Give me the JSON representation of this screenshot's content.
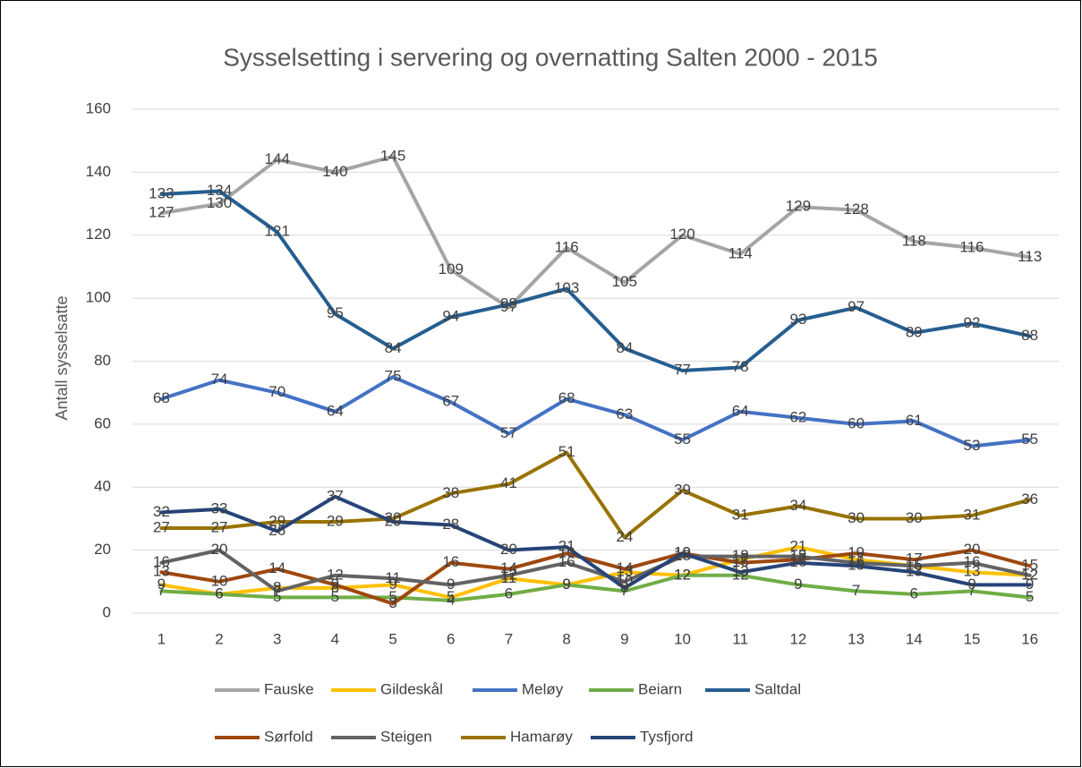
{
  "chart_data": {
    "type": "line",
    "title": "Sysselsetting i servering og overnatting Salten 2000 - 2015",
    "y_label": "Antall sysselsatte",
    "categories": [
      "1",
      "2",
      "3",
      "4",
      "5",
      "6",
      "7",
      "8",
      "9",
      "10",
      "11",
      "12",
      "13",
      "14",
      "15",
      "16"
    ],
    "series": [
      {
        "name": "Fauske",
        "color": "#a5a5a5",
        "values": [
          127,
          130,
          144,
          140,
          145,
          109,
          97,
          116,
          105,
          120,
          114,
          129,
          128,
          118,
          116,
          113
        ]
      },
      {
        "name": "Gildeskål",
        "color": "#ffc000",
        "values": [
          9,
          6,
          8,
          8,
          9,
          5,
          11,
          9,
          13,
          12,
          17,
          21,
          17,
          15,
          13,
          12
        ]
      },
      {
        "name": "Meløy",
        "color": "#4472c4",
        "values": [
          68,
          74,
          70,
          64,
          75,
          67,
          57,
          68,
          63,
          55,
          64,
          62,
          60,
          61,
          53,
          55
        ]
      },
      {
        "name": "Beiarn",
        "color": "#70ad47",
        "values": [
          7,
          6,
          5,
          5,
          5,
          4,
          6,
          9,
          7,
          12,
          12,
          9,
          7,
          6,
          7,
          5
        ]
      },
      {
        "name": "Saltdal",
        "color": "#255e91",
        "values": [
          133,
          134,
          121,
          95,
          84,
          94,
          98,
          103,
          84,
          77,
          78,
          93,
          97,
          89,
          92,
          88
        ]
      },
      {
        "name": "Sørfold",
        "color": "#9e480e",
        "values": [
          13,
          10,
          14,
          9,
          3,
          16,
          14,
          19,
          14,
          19,
          16,
          17,
          19,
          17,
          20,
          15
        ]
      },
      {
        "name": "Steigen",
        "color": "#636363",
        "values": [
          16,
          20,
          7,
          12,
          11,
          9,
          12,
          16,
          10,
          18,
          18,
          18,
          16,
          15,
          16,
          12
        ]
      },
      {
        "name": "Hamarøy",
        "color": "#997300",
        "values": [
          27,
          27,
          29,
          29,
          30,
          38,
          41,
          51,
          24,
          39,
          31,
          34,
          30,
          30,
          31,
          36
        ]
      },
      {
        "name": "Tysfjord",
        "color": "#264478",
        "values": [
          32,
          33,
          26,
          37,
          29,
          28,
          20,
          21,
          8,
          19,
          13,
          16,
          15,
          13,
          9,
          9
        ]
      }
    ],
    "ylim": [
      0,
      160
    ],
    "yticks": [
      0,
      20,
      40,
      60,
      80,
      100,
      120,
      140,
      160
    ],
    "grid": true,
    "legend": "bottom"
  }
}
